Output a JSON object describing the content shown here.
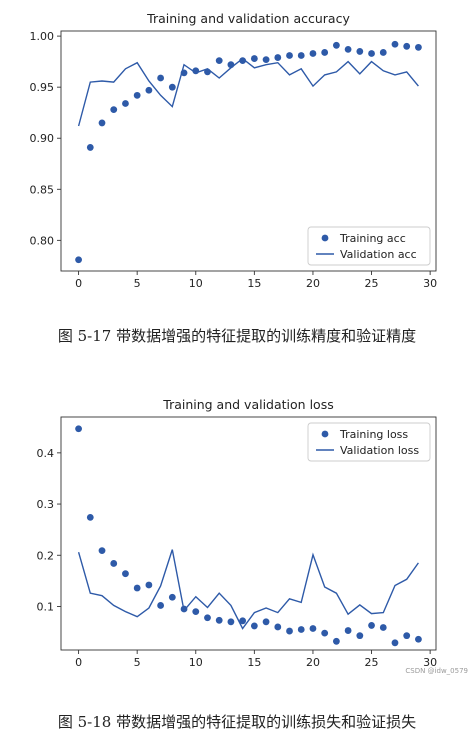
{
  "chart_data": [
    {
      "type": "scatter",
      "title": "Training and validation accuracy",
      "xlabel": "",
      "ylabel": "",
      "xlim": [
        -1.5,
        30.5
      ],
      "ylim": [
        0.77,
        1.005
      ],
      "xticks": [
        0,
        5,
        10,
        15,
        20,
        25,
        30
      ],
      "yticks": [
        0.8,
        0.85,
        0.9,
        0.95,
        1.0
      ],
      "ytick_labels": [
        "0.80",
        "0.85",
        "0.90",
        "0.95",
        "1.00"
      ],
      "grid": false,
      "legend_position": "bottom-right",
      "series": [
        {
          "name": "Training acc",
          "style": "markers",
          "color": "#2e5aa8",
          "x": [
            0,
            1,
            2,
            3,
            4,
            5,
            6,
            7,
            8,
            9,
            10,
            11,
            12,
            13,
            14,
            15,
            16,
            17,
            18,
            19,
            20,
            21,
            22,
            23,
            24,
            25,
            26,
            27,
            28,
            29
          ],
          "y": [
            0.781,
            0.891,
            0.915,
            0.928,
            0.934,
            0.942,
            0.947,
            0.959,
            0.95,
            0.964,
            0.966,
            0.965,
            0.976,
            0.972,
            0.976,
            0.978,
            0.977,
            0.979,
            0.981,
            0.981,
            0.983,
            0.984,
            0.991,
            0.987,
            0.985,
            0.983,
            0.984,
            0.992,
            0.99,
            0.989
          ]
        },
        {
          "name": "Validation acc",
          "style": "line",
          "color": "#2e5aa8",
          "x": [
            0,
            1,
            2,
            3,
            4,
            5,
            6,
            7,
            8,
            9,
            10,
            11,
            12,
            13,
            14,
            15,
            16,
            17,
            18,
            19,
            20,
            21,
            22,
            23,
            24,
            25,
            26,
            27,
            28,
            29
          ],
          "y": [
            0.912,
            0.955,
            0.956,
            0.955,
            0.968,
            0.974,
            0.956,
            0.942,
            0.931,
            0.972,
            0.964,
            0.968,
            0.959,
            0.969,
            0.978,
            0.969,
            0.972,
            0.974,
            0.962,
            0.968,
            0.951,
            0.962,
            0.965,
            0.975,
            0.963,
            0.975,
            0.966,
            0.962,
            0.965,
            0.951
          ]
        }
      ]
    },
    {
      "type": "scatter",
      "title": "Training and validation loss",
      "xlabel": "",
      "ylabel": "",
      "xlim": [
        -1.5,
        30.5
      ],
      "ylim": [
        0.015,
        0.47
      ],
      "xticks": [
        0,
        5,
        10,
        15,
        20,
        25,
        30
      ],
      "yticks": [
        0.1,
        0.2,
        0.3,
        0.4
      ],
      "ytick_labels": [
        "0.1",
        "0.2",
        "0.3",
        "0.4"
      ],
      "grid": false,
      "legend_position": "top-right",
      "series": [
        {
          "name": "Training loss",
          "style": "markers",
          "color": "#2e5aa8",
          "x": [
            0,
            1,
            2,
            3,
            4,
            5,
            6,
            7,
            8,
            9,
            10,
            11,
            12,
            13,
            14,
            15,
            16,
            17,
            18,
            19,
            20,
            21,
            22,
            23,
            24,
            25,
            26,
            27,
            28,
            29
          ],
          "y": [
            0.447,
            0.274,
            0.209,
            0.184,
            0.164,
            0.136,
            0.142,
            0.102,
            0.118,
            0.095,
            0.09,
            0.078,
            0.073,
            0.07,
            0.072,
            0.062,
            0.07,
            0.06,
            0.052,
            0.055,
            0.057,
            0.048,
            0.032,
            0.053,
            0.043,
            0.063,
            0.059,
            0.029,
            0.043,
            0.036
          ]
        },
        {
          "name": "Validation loss",
          "style": "line",
          "color": "#2e5aa8",
          "x": [
            0,
            1,
            2,
            3,
            4,
            5,
            6,
            7,
            8,
            9,
            10,
            11,
            12,
            13,
            14,
            15,
            16,
            17,
            18,
            19,
            20,
            21,
            22,
            23,
            24,
            25,
            26,
            27,
            28,
            29
          ],
          "y": [
            0.206,
            0.126,
            0.121,
            0.102,
            0.09,
            0.08,
            0.097,
            0.14,
            0.211,
            0.092,
            0.119,
            0.098,
            0.126,
            0.102,
            0.057,
            0.088,
            0.097,
            0.088,
            0.115,
            0.108,
            0.201,
            0.138,
            0.126,
            0.085,
            0.103,
            0.086,
            0.088,
            0.141,
            0.153,
            0.185
          ]
        }
      ]
    }
  ],
  "captions": {
    "figure1": "图 5-17    带数据增强的特征提取的训练精度和验证精度",
    "figure2": "图 5-18    带数据增强的特征提取的训练损失和验证损失"
  },
  "watermark": "CSDN @idw_0579"
}
